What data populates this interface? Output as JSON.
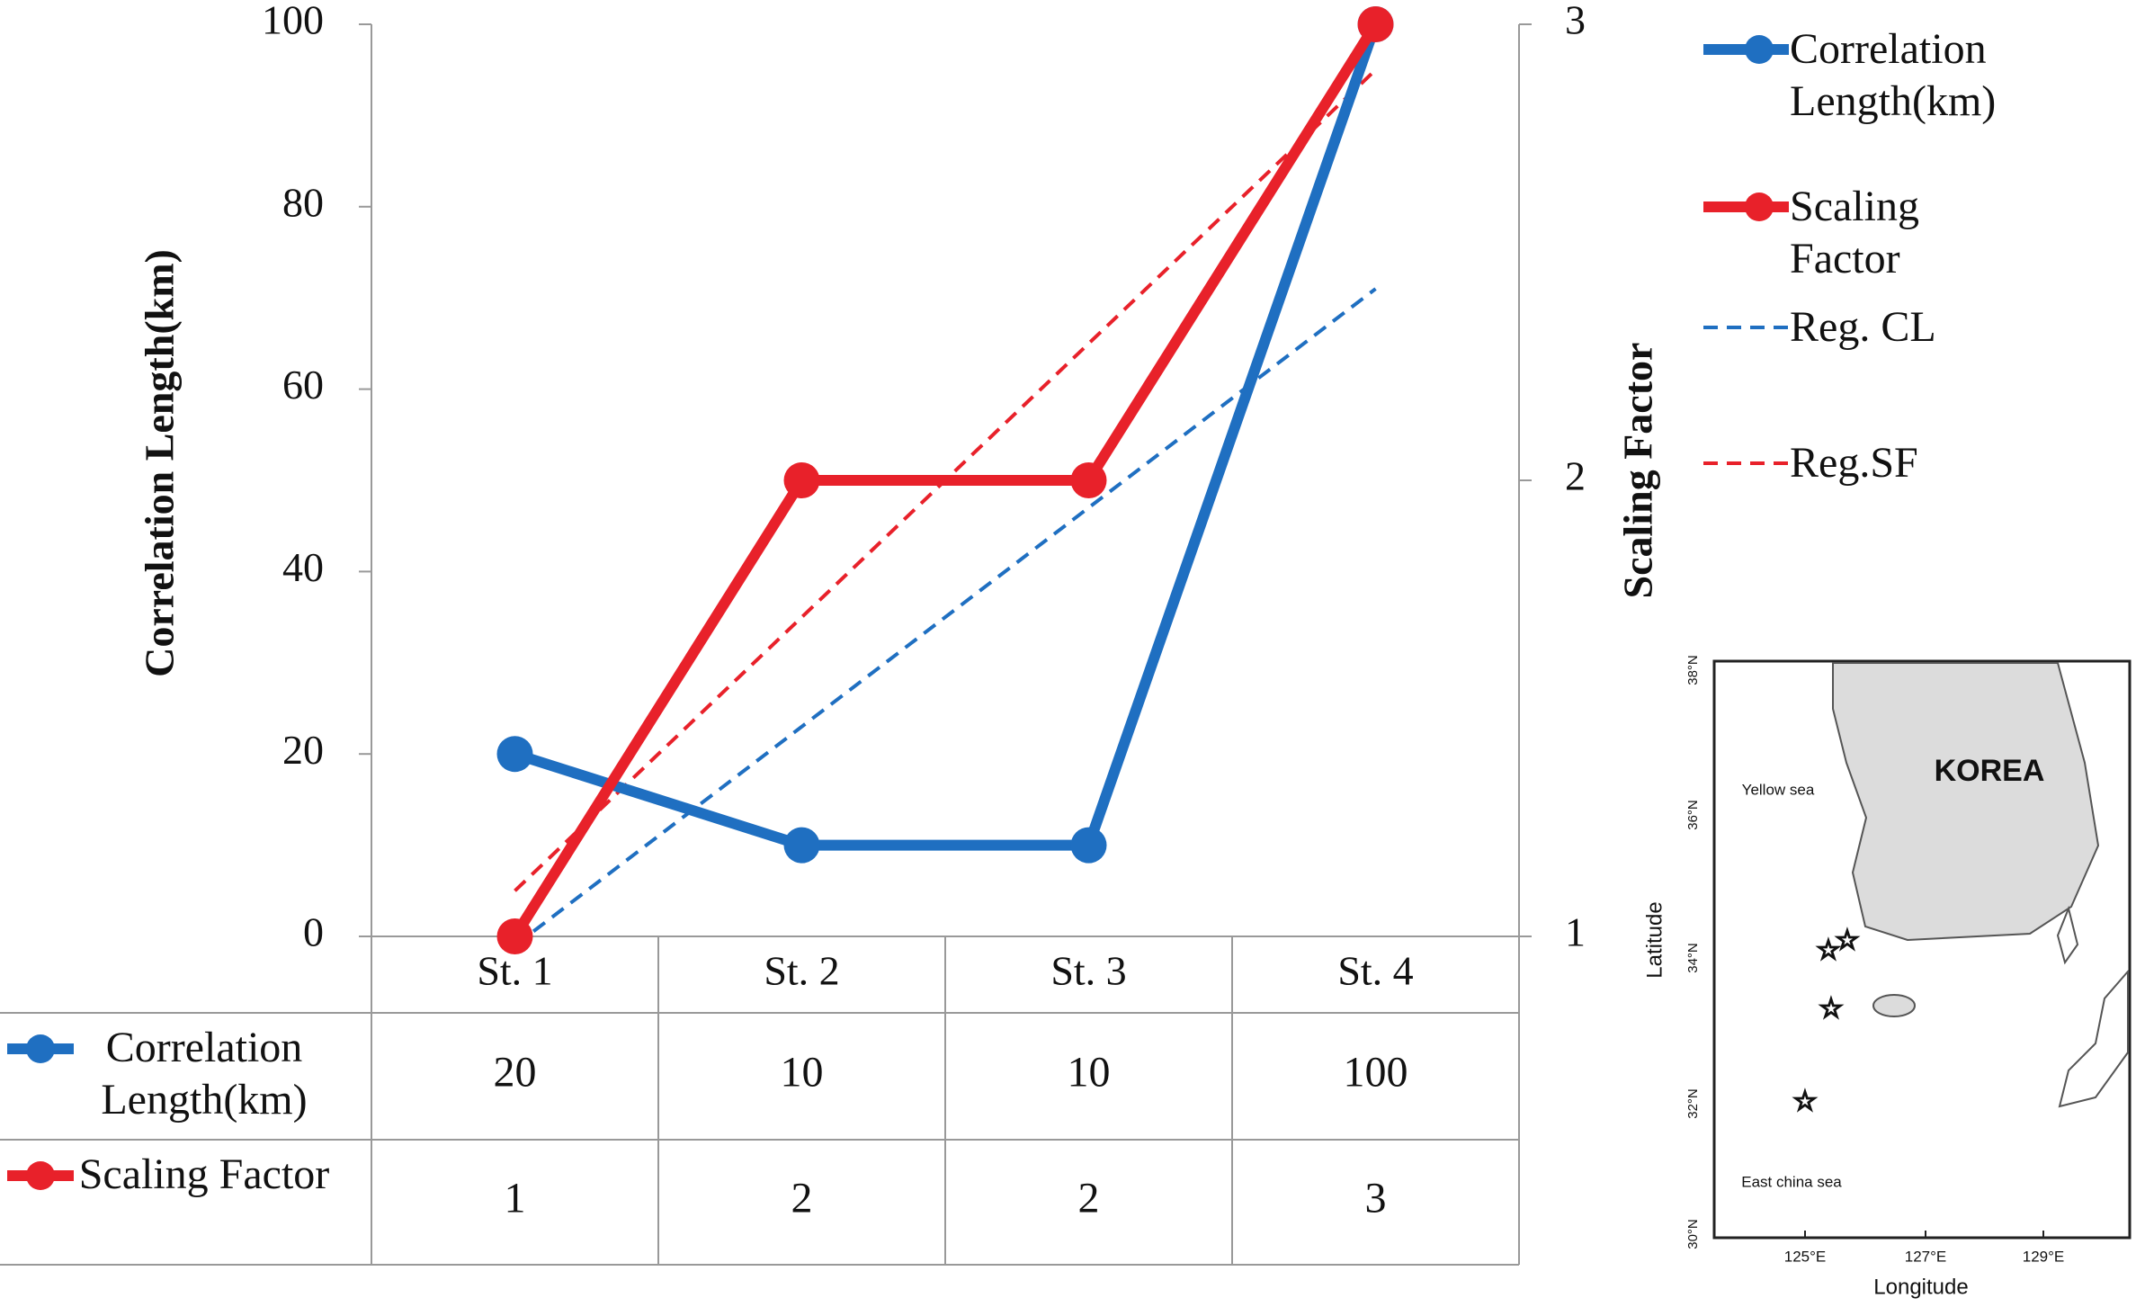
{
  "chart_data": {
    "type": "line",
    "categories": [
      "St. 1",
      "St. 2",
      "St. 3",
      "St. 4"
    ],
    "y_label": "Correlation Length(km)",
    "y2_label": "Scaling Factor",
    "ylim": [
      0,
      100
    ],
    "yticks": [
      0,
      20,
      40,
      60,
      80,
      100
    ],
    "y2lim": [
      1,
      3
    ],
    "y2ticks": [
      1,
      2,
      3
    ],
    "grid": false,
    "legend": "right",
    "data_table": true,
    "series": [
      {
        "name": "Correlation Length(km)",
        "color": "#1f6fc1",
        "values": [
          20,
          10,
          10,
          100
        ],
        "marker": true
      },
      {
        "name": "Scaling Factor",
        "color": "#e8212a",
        "values": [
          1,
          2,
          2,
          3
        ],
        "axis": "y2",
        "marker": true
      },
      {
        "name": "Reg. CL",
        "color": "#1f6fc1",
        "values": [
          -1,
          23,
          47,
          71
        ],
        "dash": true
      },
      {
        "name": "Reg.SF",
        "color": "#e8212a",
        "values": [
          1.1,
          1.7,
          2.3,
          2.9
        ],
        "axis": "y2",
        "dash": true
      }
    ]
  },
  "inset_map": {
    "place": "KOREA",
    "sea_north": "Yellow sea",
    "sea_south": "East china sea",
    "x_label": "Longitude",
    "y_label": "Latitude",
    "lat_ticks": [
      "38°N",
      "36°N",
      "34°N",
      "32°N",
      "30°N"
    ],
    "lon_ticks": [
      "125°E",
      "127°E",
      "129°E"
    ]
  }
}
